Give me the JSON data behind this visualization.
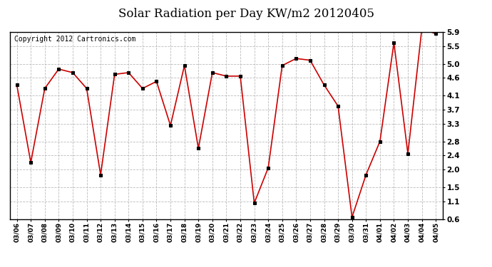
{
  "title": "Solar Radiation per Day KW/m2 20120405",
  "copyright": "Copyright 2012 Cartronics.com",
  "x_labels": [
    "03/06",
    "03/07",
    "03/08",
    "03/09",
    "03/10",
    "03/11",
    "03/12",
    "03/13",
    "03/14",
    "03/15",
    "03/16",
    "03/17",
    "03/18",
    "03/19",
    "03/20",
    "03/21",
    "03/22",
    "03/23",
    "03/24",
    "03/25",
    "03/26",
    "03/27",
    "03/28",
    "03/29",
    "03/30",
    "03/31",
    "04/01",
    "04/02",
    "04/03",
    "04/04",
    "04/05"
  ],
  "y_values": [
    4.4,
    2.2,
    4.3,
    4.85,
    4.75,
    4.3,
    1.85,
    4.7,
    4.75,
    4.3,
    4.5,
    3.25,
    4.95,
    2.6,
    4.75,
    4.65,
    4.65,
    1.05,
    2.05,
    4.95,
    5.15,
    5.1,
    4.4,
    3.8,
    0.65,
    1.85,
    2.8,
    5.6,
    2.45,
    6.0,
    5.85
  ],
  "line_color": "#cc0000",
  "marker_color": "#000000",
  "background_color": "#ffffff",
  "plot_bg_color": "#ffffff",
  "grid_color": "#bbbbbb",
  "ylim": [
    0.6,
    5.9
  ],
  "yticks": [
    0.6,
    1.1,
    1.5,
    2.0,
    2.4,
    2.8,
    3.3,
    3.7,
    4.1,
    4.6,
    5.0,
    5.5,
    5.9
  ],
  "title_fontsize": 12,
  "copyright_fontsize": 7,
  "tick_fontsize": 7.5,
  "xtick_fontsize": 6.5
}
